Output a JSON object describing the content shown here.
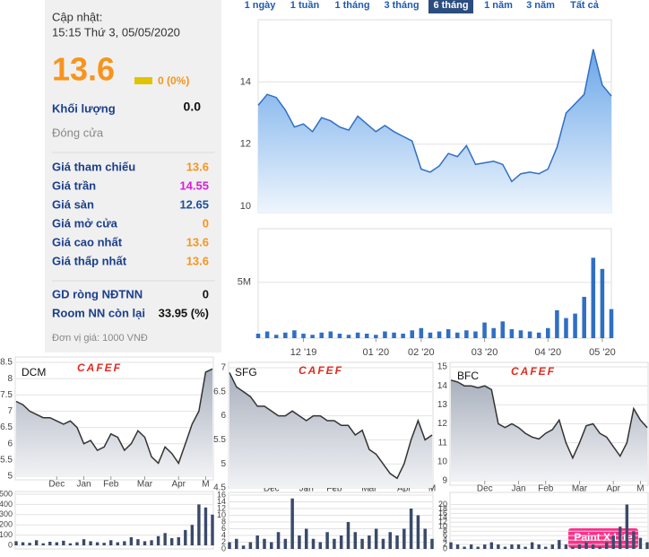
{
  "panel": {
    "updated_label": "Cập nhật:",
    "updated": "15:15 Thứ 3, 05/05/2020",
    "price": 13.6,
    "change": "0 (0%)",
    "volume_label": "Khối lượng",
    "volume": "0.0",
    "status": "Đóng cửa",
    "rows": [
      {
        "label": "Giá tham chiếu",
        "value": 13.6,
        "color": "#f7941d"
      },
      {
        "label": "Giá trần",
        "value": 14.55,
        "color": "#d61fd6"
      },
      {
        "label": "Giá sàn",
        "value": 12.65,
        "color": "#1e4f9c"
      },
      {
        "label": "Giá mở cửa",
        "value": 0,
        "color": "#f7941d"
      },
      {
        "label": "Giá cao nhất",
        "value": 13.6,
        "color": "#f7941d"
      },
      {
        "label": "Giá thấp nhất",
        "value": 13.6,
        "color": "#f7941d"
      }
    ],
    "foreign": [
      {
        "label": "GD ròng NĐTNN",
        "value": 0
      },
      {
        "label": "Room NN còn lại",
        "value": "33.95 (%)"
      }
    ],
    "unit_note": "Đơn vị giá: 1000 VNĐ"
  },
  "tabs": {
    "items": [
      "1 ngày",
      "1 tuần",
      "1 tháng",
      "3 tháng",
      "6 tháng",
      "1 năm",
      "3 năm",
      "Tất cả"
    ],
    "active": 4
  },
  "watermark": "Paint X Lite",
  "chart_data": [
    {
      "type": "area",
      "values": [
        13.25,
        13.6,
        13.5,
        13.1,
        12.55,
        12.65,
        12.4,
        12.85,
        12.75,
        12.55,
        12.45,
        12.9,
        12.65,
        12.4,
        12.6,
        12.4,
        12.25,
        12.1,
        11.2,
        11.1,
        11.3,
        11.7,
        11.6,
        11.95,
        11.35,
        11.4,
        11.45,
        11.35,
        10.8,
        11.05,
        11.1,
        11.05,
        11.2,
        11.9,
        13.0,
        13.3,
        13.6,
        15.05,
        13.9,
        13.55
      ],
      "ylim": [
        9.8,
        16
      ],
      "yticks": [
        10,
        12,
        14
      ],
      "color": "#2f6fc4",
      "grid": true
    },
    {
      "type": "bar",
      "categories": [
        null,
        null,
        null,
        null,
        null,
        "12 '19",
        null,
        null,
        null,
        null,
        null,
        null,
        null,
        "01 '20",
        null,
        null,
        null,
        null,
        "02 '20",
        null,
        null,
        null,
        null,
        null,
        null,
        "03 '20",
        null,
        null,
        null,
        null,
        null,
        null,
        "04 '20",
        null,
        null,
        null,
        null,
        null,
        "05 '20",
        null
      ],
      "values": [
        400000,
        600000,
        300000,
        500000,
        700000,
        400000,
        300000,
        500000,
        600000,
        400000,
        300000,
        500000,
        400000,
        300000,
        600000,
        500000,
        400000,
        700000,
        900000,
        500000,
        600000,
        800000,
        500000,
        700000,
        600000,
        1400000,
        900000,
        1500000,
        800000,
        700000,
        600000,
        500000,
        900000,
        2500000,
        1800000,
        2200000,
        3700000,
        7200000,
        6200000,
        2600000
      ],
      "ylim": [
        0,
        9800000
      ],
      "yticks": [
        {
          "value": 5000000,
          "label": "5M"
        }
      ],
      "color": "#2f6fc4",
      "grid": true
    },
    {
      "type": "area",
      "title": "DCM",
      "logo": "CAFEF",
      "categories": [
        null,
        null,
        null,
        null,
        null,
        null,
        "Dec",
        null,
        null,
        null,
        "Jan",
        null,
        null,
        null,
        "Feb",
        null,
        null,
        null,
        null,
        "Mar",
        null,
        null,
        null,
        null,
        "Apr",
        null,
        null,
        null,
        "M",
        null
      ],
      "values": [
        7.3,
        7.2,
        7.0,
        6.9,
        6.8,
        6.8,
        6.7,
        6.6,
        6.7,
        6.5,
        6.0,
        6.1,
        5.8,
        5.9,
        6.3,
        6.2,
        5.8,
        6.0,
        6.4,
        6.2,
        5.6,
        5.4,
        5.9,
        5.7,
        5.4,
        6.0,
        6.6,
        7.0,
        8.2,
        8.3
      ],
      "ylim": [
        5,
        8.5
      ],
      "yticks": [
        5,
        5.5,
        6,
        6.5,
        7,
        7.5,
        8,
        8.5
      ],
      "color": "#333333",
      "grid": true
    },
    {
      "type": "bar",
      "values": [
        40,
        30,
        25,
        50,
        20,
        35,
        30,
        45,
        20,
        30,
        60,
        40,
        30,
        25,
        50,
        30,
        40,
        80,
        60,
        40,
        50,
        90,
        120,
        70,
        80,
        150,
        200,
        400,
        370,
        300
      ],
      "ylim": [
        0,
        500
      ],
      "yticks": [
        0,
        100,
        200,
        300,
        400,
        500
      ],
      "color": "#3a4a6a",
      "grid": true
    },
    {
      "type": "area",
      "title": "SFG",
      "logo": "CAFEF",
      "categories": [
        null,
        null,
        null,
        null,
        null,
        null,
        "Dec",
        null,
        null,
        null,
        null,
        "Jan",
        null,
        null,
        null,
        "Feb",
        null,
        null,
        null,
        null,
        "Mar",
        null,
        null,
        null,
        null,
        "Apr",
        null,
        null,
        null,
        "M"
      ],
      "values": [
        6.9,
        6.6,
        6.5,
        6.4,
        6.2,
        6.2,
        6.1,
        6.0,
        6.0,
        6.1,
        6.0,
        5.9,
        6.0,
        6.0,
        5.9,
        5.9,
        5.8,
        5.8,
        5.6,
        5.7,
        5.3,
        5.2,
        5.0,
        4.8,
        4.7,
        5.0,
        5.5,
        5.9,
        5.5,
        5.6
      ],
      "ylim": [
        4.5,
        7
      ],
      "yticks": [
        4.5,
        5,
        5.5,
        6,
        6.5,
        7
      ],
      "color": "#333333",
      "grid": true
    },
    {
      "type": "bar",
      "values": [
        2,
        3,
        1,
        2,
        4,
        3,
        2,
        5,
        3,
        15,
        4,
        6,
        3,
        2,
        5,
        3,
        4,
        8,
        5,
        3,
        4,
        6,
        3,
        5,
        4,
        6,
        12,
        10,
        6,
        3
      ],
      "ylim": [
        0,
        16
      ],
      "yticks": [
        0,
        2,
        4,
        6,
        8,
        10,
        12,
        14,
        16
      ],
      "color": "#3a4a6a",
      "grid": true
    },
    {
      "type": "area",
      "title": "BFC",
      "logo": "CAFEF",
      "categories": [
        null,
        null,
        null,
        null,
        null,
        "Dec",
        null,
        null,
        null,
        null,
        "Jan",
        null,
        null,
        null,
        "Feb",
        null,
        null,
        null,
        null,
        "Mar",
        null,
        null,
        null,
        null,
        "Apr",
        null,
        null,
        null,
        "M",
        null
      ],
      "values": [
        14.3,
        14.2,
        14.0,
        14.0,
        13.9,
        14.0,
        13.8,
        12.0,
        11.8,
        12.0,
        11.8,
        11.5,
        11.3,
        11.2,
        11.5,
        11.7,
        12.2,
        11.0,
        10.2,
        11.0,
        11.9,
        12.0,
        11.5,
        11.3,
        10.8,
        10.3,
        11.0,
        12.8,
        12.2,
        11.8
      ],
      "ylim": [
        9,
        15
      ],
      "yticks": [
        9,
        10,
        11,
        12,
        13,
        14,
        15
      ],
      "color": "#333333",
      "grid": true
    },
    {
      "type": "bar",
      "values": [
        3,
        2,
        1,
        2,
        1,
        2,
        3,
        2,
        1,
        2,
        2,
        1,
        3,
        2,
        1,
        2,
        4,
        2,
        1,
        2,
        3,
        2,
        1,
        3,
        6,
        10,
        20,
        8,
        5,
        3
      ],
      "ylim": [
        0,
        21
      ],
      "yticks": [
        0,
        2,
        4,
        6,
        8,
        10,
        12,
        14,
        16,
        18,
        20
      ],
      "color": "#3a4a6a",
      "grid": true
    }
  ]
}
